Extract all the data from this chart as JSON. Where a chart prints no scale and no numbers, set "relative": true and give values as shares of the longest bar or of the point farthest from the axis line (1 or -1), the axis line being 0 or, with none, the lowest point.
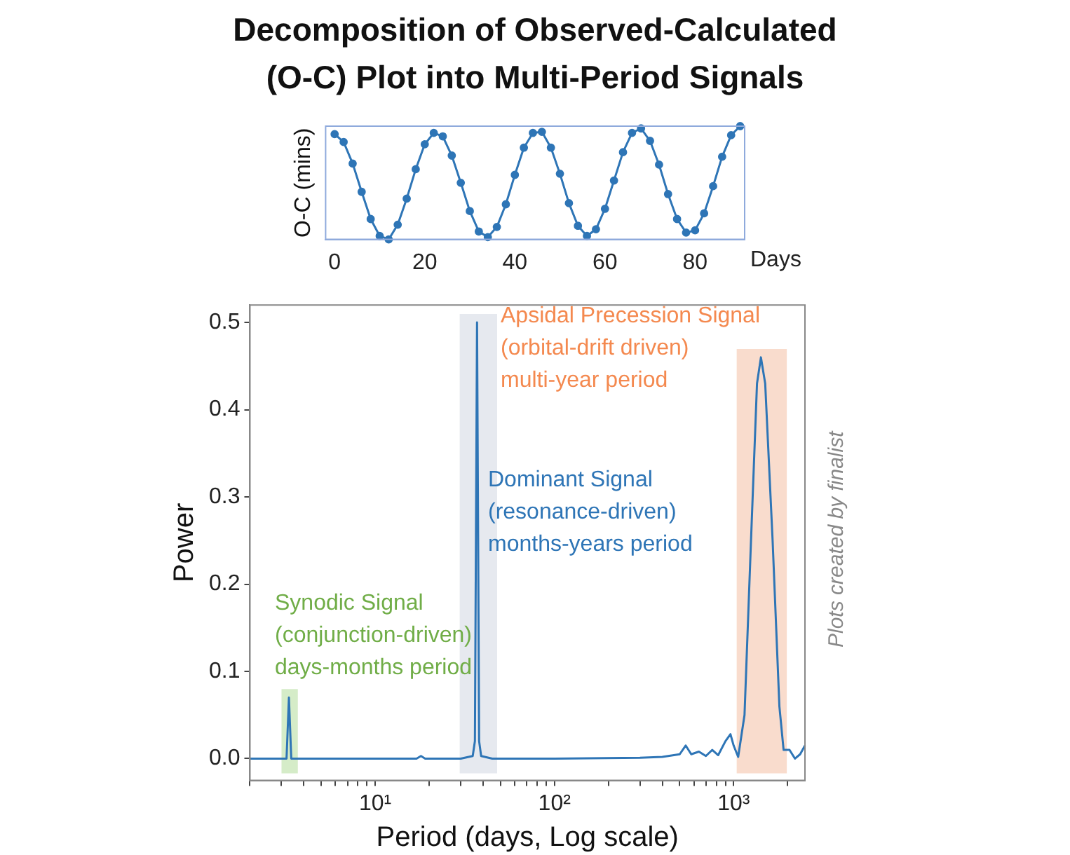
{
  "chart_data": [
    {
      "type": "line",
      "title": "Decomposition of Observed-Calculated\n(O-C) Plot into Multi-Period Signals",
      "xlabel": "Days",
      "ylabel": "O-C (mins)",
      "relative": true,
      "marker": "circle",
      "x": [
        0,
        2,
        4,
        6,
        8,
        10,
        12,
        14,
        16,
        18,
        20,
        22,
        24,
        26,
        28,
        30,
        32,
        34,
        36,
        38,
        40,
        42,
        44,
        46,
        48,
        50,
        52,
        54,
        56,
        58,
        60,
        62,
        64,
        66,
        68,
        70,
        72,
        74,
        76,
        78,
        80,
        82,
        84,
        86,
        88,
        90
      ],
      "xlim": [
        -2,
        91
      ],
      "xticks": [
        0,
        20,
        40,
        60,
        80
      ],
      "series": [
        {
          "color": "#2e75b6",
          "values": [
            0.93,
            0.86,
            0.67,
            0.42,
            0.18,
            0.03,
            0.0,
            0.13,
            0.36,
            0.62,
            0.84,
            0.94,
            0.91,
            0.74,
            0.5,
            0.25,
            0.07,
            0.02,
            0.11,
            0.31,
            0.57,
            0.81,
            0.94,
            0.95,
            0.81,
            0.58,
            0.32,
            0.12,
            0.03,
            0.09,
            0.27,
            0.52,
            0.77,
            0.94,
            0.98,
            0.87,
            0.66,
            0.4,
            0.18,
            0.06,
            0.08,
            0.23,
            0.47,
            0.73,
            0.92,
            1.0
          ]
        }
      ]
    },
    {
      "type": "line",
      "xlabel": "Period (days, Log scale)",
      "ylabel": "Power",
      "log": "x",
      "x": [
        2,
        3.0,
        3.2,
        3.3,
        3.4,
        3.6,
        10,
        17,
        18,
        19,
        30,
        35,
        36,
        37,
        38,
        39,
        45,
        100,
        300,
        400,
        500,
        540,
        580,
        640,
        700,
        760,
        820,
        900,
        960,
        1000,
        1060,
        1150,
        1250,
        1350,
        1420,
        1500,
        1650,
        1800,
        1900,
        2050,
        2200,
        2350,
        2500
      ],
      "xlim": [
        2,
        2500
      ],
      "xticks": [
        {
          "value": 2,
          "label": null
        },
        {
          "value": 3,
          "label": null
        },
        {
          "value": 4,
          "label": null
        },
        {
          "value": 5,
          "label": null
        },
        {
          "value": 6,
          "label": null
        },
        {
          "value": 7,
          "label": null
        },
        {
          "value": 8,
          "label": null
        },
        {
          "value": 9,
          "label": null
        },
        {
          "value": 10,
          "label": "10¹"
        },
        {
          "value": 20,
          "label": null
        },
        {
          "value": 30,
          "label": null
        },
        {
          "value": 40,
          "label": null
        },
        {
          "value": 50,
          "label": null
        },
        {
          "value": 60,
          "label": null
        },
        {
          "value": 70,
          "label": null
        },
        {
          "value": 80,
          "label": null
        },
        {
          "value": 90,
          "label": null
        },
        {
          "value": 100,
          "label": "10²"
        },
        {
          "value": 200,
          "label": null
        },
        {
          "value": 300,
          "label": null
        },
        {
          "value": 400,
          "label": null
        },
        {
          "value": 500,
          "label": null
        },
        {
          "value": 600,
          "label": null
        },
        {
          "value": 700,
          "label": null
        },
        {
          "value": 800,
          "label": null
        },
        {
          "value": 900,
          "label": null
        },
        {
          "value": 1000,
          "label": "10³"
        },
        {
          "value": 2000,
          "label": null
        }
      ],
      "ylim": [
        -0.025,
        0.52
      ],
      "yticks": [
        {
          "value": 0,
          "label": "0.0"
        },
        {
          "value": 0.1,
          "label": "0.1"
        },
        {
          "value": 0.2,
          "label": "0.2"
        },
        {
          "value": 0.3,
          "label": "0.3"
        },
        {
          "value": 0.4,
          "label": "0.4"
        },
        {
          "value": 0.5,
          "label": "0.5"
        }
      ],
      "series": [
        {
          "color": "#2e75b6",
          "values": [
            0,
            0,
            0,
            0.07,
            0,
            0,
            0,
            0,
            0.003,
            0,
            0,
            0.003,
            0.02,
            0.5,
            0.02,
            0.003,
            0,
            0,
            0.001,
            0.002,
            0.005,
            0.015,
            0.005,
            0.008,
            0.003,
            0.01,
            0.004,
            0.02,
            0.028,
            0.015,
            0.002,
            0.05,
            0.25,
            0.43,
            0.46,
            0.43,
            0.25,
            0.06,
            0.01,
            0.01,
            0,
            0.005,
            0.015
          ]
        }
      ],
      "bands": [
        {
          "axis": "x",
          "from": 3.0,
          "to": 3.7,
          "color": "#d5ecc8"
        },
        {
          "axis": "x",
          "from": 29.6,
          "to": 47.9,
          "color": "#e6e9ef"
        },
        {
          "axis": "x",
          "from": 1040,
          "to": 1980,
          "color": "#f9dccd"
        }
      ],
      "annotations": [
        "Synodic Signal\n(conjunction-driven)\ndays-months period",
        "Dominant Signal\n(resonance-driven)\nmonths-years period",
        "Apsidal Precession Signal\n(orbital-drift driven)\nmulti-year period",
        "Plots created by finalist"
      ]
    }
  ]
}
